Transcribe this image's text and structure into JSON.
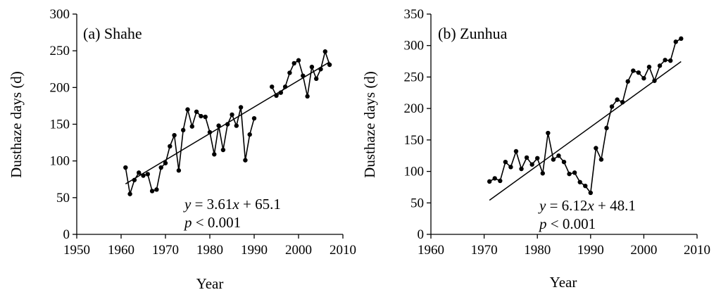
{
  "chart_data": [
    {
      "type": "line",
      "panel_label": "(a) Shahe",
      "xlabel": "Year",
      "ylabel": "Dusthaze days (d)",
      "xlim": [
        1950,
        2010
      ],
      "ylim": [
        0,
        300
      ],
      "xticks": [
        "1950",
        "1960",
        "1970",
        "1980",
        "1990",
        "2000",
        "2010"
      ],
      "yticks": [
        "0",
        "50",
        "100",
        "150",
        "200",
        "250",
        "300"
      ],
      "series": [
        {
          "segments": [
            {
              "x": [
                1961,
                1962,
                1963,
                1964,
                1965,
                1966,
                1967,
                1968,
                1969,
                1970,
                1971,
                1972,
                1973,
                1974,
                1975,
                1976,
                1977,
                1978,
                1979,
                1980,
                1981,
                1982,
                1983,
                1984,
                1985,
                1986,
                1987,
                1988,
                1989,
                1990
              ],
              "y": [
                91,
                55,
                74,
                84,
                80,
                82,
                59,
                61,
                91,
                97,
                120,
                135,
                87,
                142,
                170,
                147,
                167,
                161,
                160,
                139,
                109,
                148,
                115,
                150,
                163,
                148,
                173,
                101,
                136,
                158
              ]
            },
            {
              "x": [
                1994,
                1995,
                1996,
                1997,
                1998,
                1999,
                2000,
                2001,
                2002,
                2003,
                2004,
                2005,
                2006,
                2007
              ],
              "y": [
                201,
                189,
                193,
                201,
                220,
                233,
                237,
                216,
                188,
                228,
                212,
                225,
                249,
                231
              ]
            }
          ]
        }
      ],
      "trend": {
        "slope": 3.61,
        "intercept": 65.1,
        "x_origin": 1960,
        "x_range": [
          1961,
          2007
        ]
      },
      "annotation": {
        "eq_y": "y",
        "eq_rest": " = 3.61",
        "eq_x": "x",
        "eq_tail": " + 65.1",
        "p_p": "p",
        "p_rest": " < 0.001"
      }
    },
    {
      "type": "line",
      "panel_label": "(b) Zunhua",
      "xlabel": "Year",
      "ylabel": "Dusthaze days (d)",
      "xlim": [
        1960,
        2010
      ],
      "ylim": [
        0,
        350
      ],
      "xticks": [
        "1960",
        "1970",
        "1980",
        "1990",
        "2000",
        "2010"
      ],
      "yticks": [
        "0",
        "50",
        "100",
        "150",
        "200",
        "250",
        "300",
        "350"
      ],
      "series": [
        {
          "segments": [
            {
              "x": [
                1971,
                1972,
                1973,
                1974,
                1975,
                1976,
                1977,
                1978,
                1979,
                1980,
                1981,
                1982,
                1983,
                1984,
                1985,
                1986,
                1987,
                1988,
                1989,
                1990,
                1991,
                1992,
                1993,
                1994,
                1995,
                1996,
                1997,
                1998,
                1999,
                2000,
                2001,
                2002,
                2003,
                2004,
                2005,
                2006,
                2007
              ],
              "y": [
                84,
                89,
                85,
                115,
                107,
                132,
                104,
                122,
                111,
                121,
                97,
                161,
                119,
                125,
                115,
                96,
                98,
                83,
                77,
                66,
                137,
                119,
                169,
                203,
                214,
                210,
                243,
                260,
                257,
                248,
                266,
                244,
                268,
                277,
                276,
                306,
                311
              ]
            }
          ]
        }
      ],
      "trend": {
        "slope": 6.12,
        "intercept": 48.1,
        "x_origin": 1970,
        "x_range": [
          1971,
          2007
        ]
      },
      "annotation": {
        "eq_y": "y",
        "eq_rest": " = 6.12",
        "eq_x": "x",
        "eq_tail": " + 48.1",
        "p_p": "p",
        "p_rest": " < 0.001"
      }
    }
  ]
}
